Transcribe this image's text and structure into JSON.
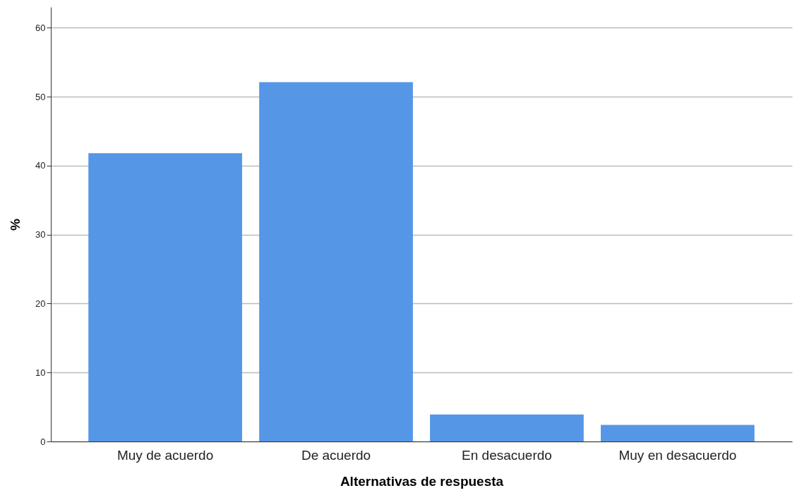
{
  "chart_data": {
    "type": "bar",
    "xlabel": "Alternativas de respuesta",
    "ylabel": "%",
    "categories": [
      "Muy de acuerdo",
      "De acuerdo",
      "En desacuerdo",
      "Muy en desacuerdo"
    ],
    "values": [
      41.8,
      52.1,
      3.9,
      2.4
    ],
    "color": "#5596e6",
    "ylim": [
      0,
      63
    ],
    "yticks": [
      0,
      10,
      20,
      30,
      40,
      50,
      60
    ],
    "grid": "y"
  }
}
